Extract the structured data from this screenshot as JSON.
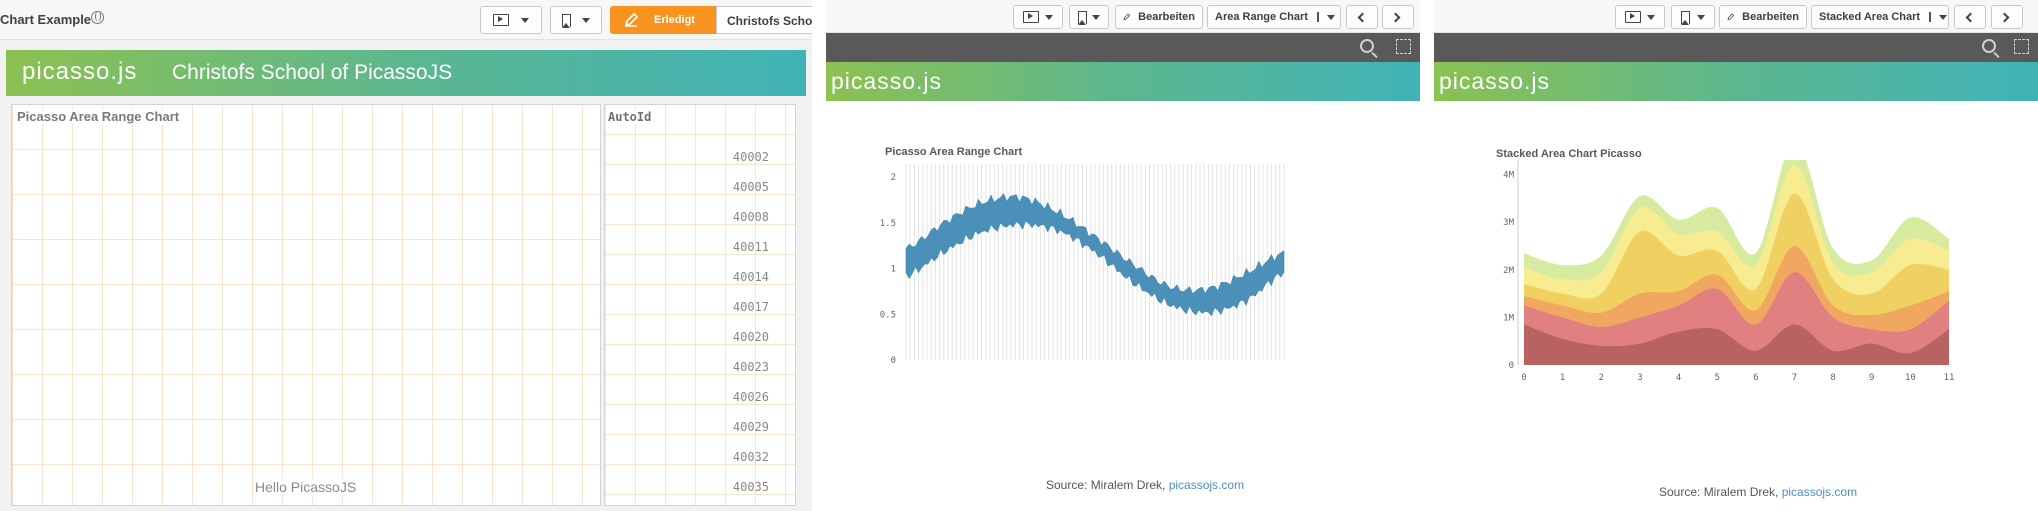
{
  "panel1": {
    "app_title": "Chart Example",
    "done_label": "Erledigt",
    "sheet_tab_label": "Christofs School of PicassoJS",
    "logo_text": "picasso.js",
    "banner_title": "Christofs School of PicassoJS",
    "chart_title": "Picasso Area Range Chart",
    "chart_message": "Hello PicassoJS",
    "table_header": "AutoId",
    "table_rows": [
      "40002",
      "40005",
      "40008",
      "40011",
      "40014",
      "40017",
      "40020",
      "40023",
      "40026",
      "40029",
      "40032",
      "40035"
    ]
  },
  "panel2": {
    "edit_label": "Bearbeiten",
    "sheet_label": "Area Range Chart",
    "logo_text": "picasso.js",
    "chart_title": "Picasso Area Range Chart",
    "source_prefix": "Source: Miralem Drek, ",
    "source_link": "picassojs.com"
  },
  "panel3": {
    "edit_label": "Bearbeiten",
    "sheet_label": "Stacked Area Chart",
    "logo_text": "picasso.js",
    "chart_title": "Stacked Area Chart Picasso",
    "source_prefix": "Source: Miralem Drek, ",
    "source_link": "picassojs.com"
  },
  "colors": {
    "accent_orange": "#f7931e",
    "banner_start": "#8cc152",
    "banner_end": "#40b3b8",
    "range_fill": "#4a90b8",
    "link": "#4a90c8"
  },
  "chart_data": [
    {
      "type": "area",
      "title": "Picasso Area Range Chart",
      "ylim": [
        0,
        2.1
      ],
      "y_ticks": [
        "0",
        "0.5",
        "1",
        "1.5",
        "2"
      ],
      "grid": true,
      "series": [
        {
          "values_low": [
            0.92,
            1.18,
            1.4,
            1.48,
            1.42,
            1.18,
            0.85,
            0.6,
            0.52,
            0.65,
            0.95
          ],
          "values_high": [
            1.22,
            1.5,
            1.72,
            1.78,
            1.62,
            1.35,
            1.05,
            0.8,
            0.78,
            0.95,
            1.17
          ]
        }
      ]
    },
    {
      "type": "area",
      "title": "Stacked Area Chart Picasso",
      "categories": [
        "0",
        "1",
        "2",
        "3",
        "4",
        "5",
        "6",
        "7",
        "8",
        "9",
        "10",
        "11"
      ],
      "ylim": [
        0,
        4200000
      ],
      "y_ticks": [
        "0",
        "1M",
        "2M",
        "3M",
        "4M"
      ],
      "series": [
        {
          "color": "#b86262",
          "values": [
            0.85,
            0.55,
            0.4,
            0.45,
            0.7,
            0.75,
            0.3,
            0.85,
            0.3,
            0.45,
            0.25,
            0.75
          ]
        },
        {
          "color": "#e08080",
          "values": [
            0.4,
            0.45,
            0.4,
            0.55,
            0.55,
            0.85,
            0.55,
            1.1,
            0.7,
            0.3,
            0.5,
            0.6
          ]
        },
        {
          "color": "#f0a860",
          "values": [
            0.2,
            0.25,
            0.3,
            0.5,
            0.3,
            0.3,
            0.3,
            0.55,
            0.25,
            0.3,
            0.5,
            0.2
          ]
        },
        {
          "color": "#f0d060",
          "values": [
            0.25,
            0.25,
            0.4,
            1.3,
            0.75,
            0.5,
            0.45,
            1.1,
            0.55,
            0.45,
            0.85,
            0.45
          ]
        },
        {
          "color": "#f8ec90",
          "values": [
            0.35,
            0.3,
            0.45,
            0.5,
            0.45,
            0.4,
            0.5,
            0.6,
            0.35,
            0.45,
            0.55,
            0.4
          ]
        },
        {
          "color": "#d7eba0",
          "values": [
            0.3,
            0.3,
            0.35,
            0.25,
            0.3,
            0.5,
            0.25,
            0.5,
            0.3,
            0.25,
            0.45,
            0.25
          ]
        }
      ]
    }
  ]
}
